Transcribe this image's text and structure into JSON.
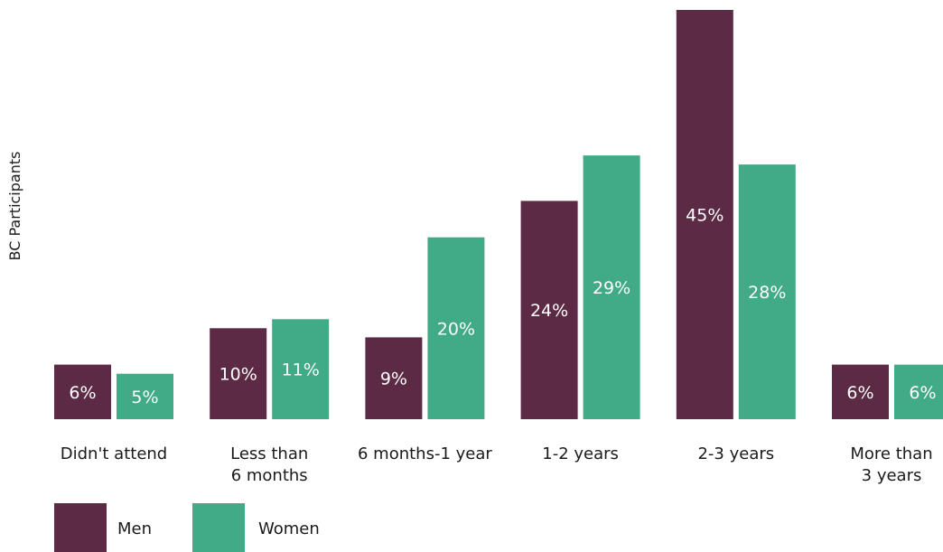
{
  "chart_data": {
    "type": "bar",
    "title": "",
    "xlabel": "",
    "ylabel": "BC Participants",
    "categories": [
      "Didn't attend",
      "Less than\n6 months",
      "6 months-1 year",
      "1-2 years",
      "2-3 years",
      "More than\n3 years"
    ],
    "series": [
      {
        "name": "Men",
        "color": "#5c2a45",
        "values": [
          6,
          10,
          9,
          24,
          45,
          6
        ],
        "labels": [
          "6%",
          "10%",
          "9%",
          "24%",
          "45%",
          "6%"
        ]
      },
      {
        "name": "Women",
        "color": "#41aa86",
        "values": [
          5,
          11,
          20,
          29,
          28,
          6
        ],
        "labels": [
          "5%",
          "11%",
          "20%",
          "29%",
          "28%",
          "6%"
        ]
      }
    ],
    "ylim": [
      0,
      45
    ],
    "grid": false,
    "legend_position": "bottom-left"
  }
}
